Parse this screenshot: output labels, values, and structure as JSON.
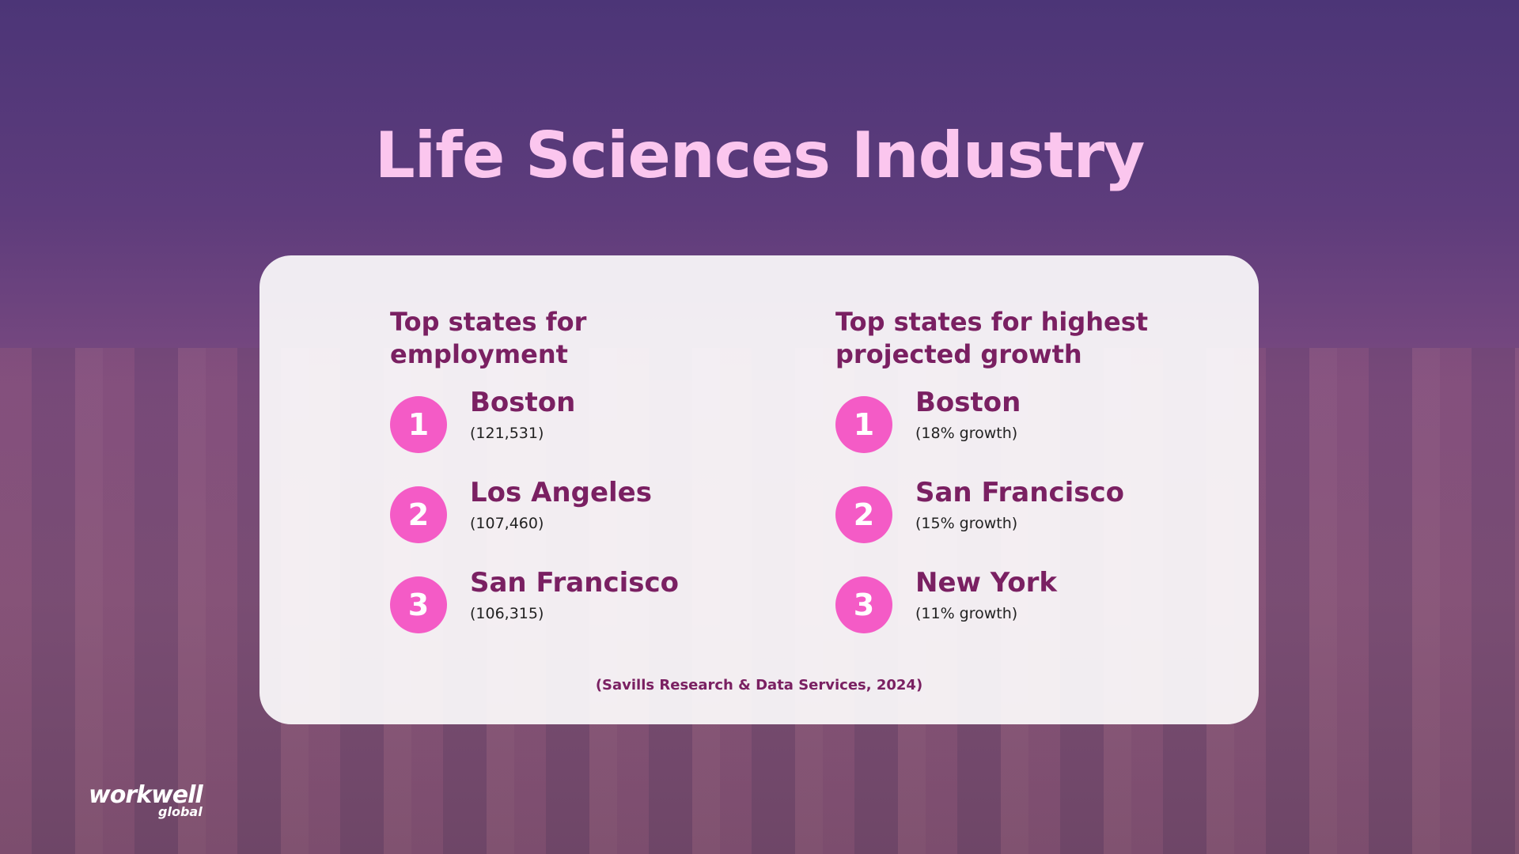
{
  "title": "Life Sciences Industry",
  "columns": [
    {
      "heading": [
        "Top states for",
        "employment"
      ],
      "items": [
        {
          "rank": 1,
          "name": "Boston",
          "detail": "(121,531)"
        },
        {
          "rank": 2,
          "name": "Los Angeles",
          "detail": "(107,460)"
        },
        {
          "rank": 3,
          "name": "San Francisco",
          "detail": "(106,315)"
        }
      ]
    },
    {
      "heading": [
        "Top states for highest",
        "projected growth"
      ],
      "items": [
        {
          "rank": 1,
          "name": "Boston",
          "detail": "(18% growth)"
        },
        {
          "rank": 2,
          "name": "San Francisco",
          "detail": "(15% growth)"
        },
        {
          "rank": 3,
          "name": "New York",
          "detail": "(11% growth)"
        }
      ]
    }
  ],
  "source": "(Savills Research & Data Services, 2024)",
  "logo": {
    "name": "workwell",
    "sub": "global"
  }
}
